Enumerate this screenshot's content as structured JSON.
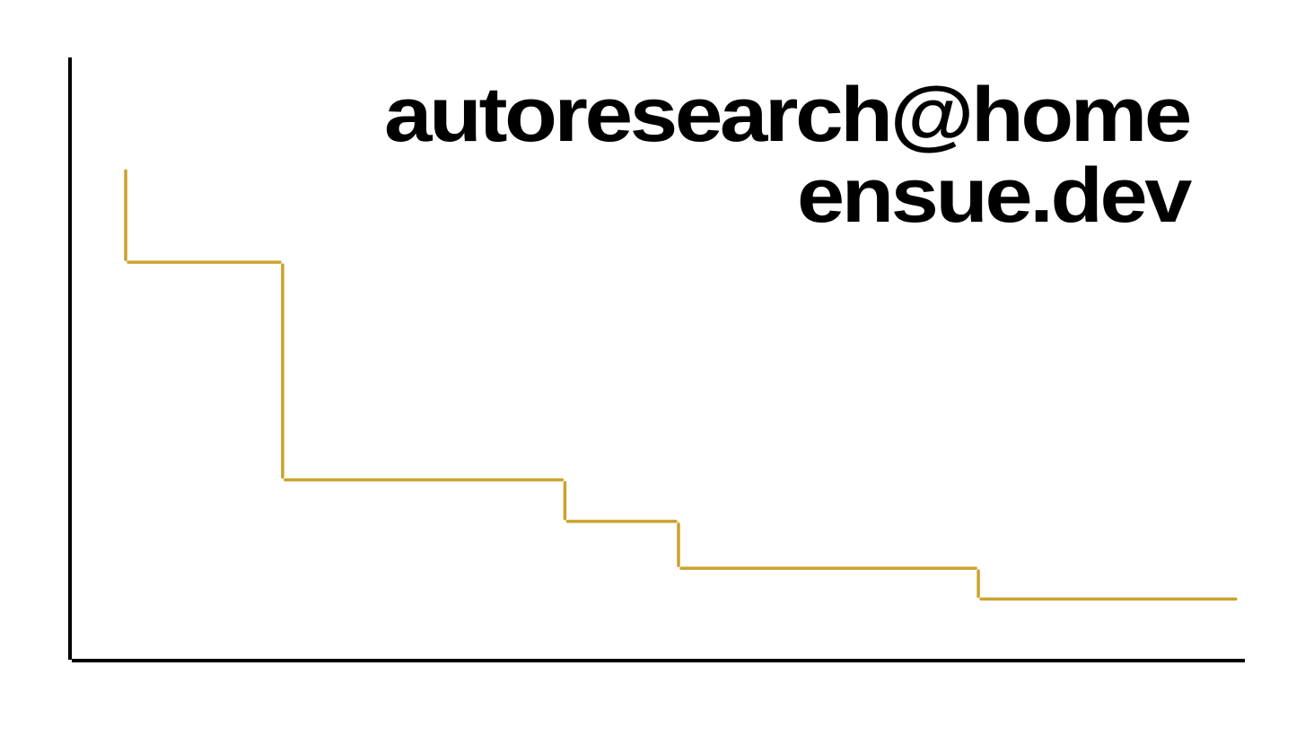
{
  "chart_data": {
    "type": "line",
    "subtype": "step",
    "title": "autoresearch@home",
    "subtitle": "ensue.dev",
    "xlabel": "",
    "ylabel": "",
    "grid": false,
    "legend": "none",
    "xlim": [
      0,
      100
    ],
    "ylim": [
      0,
      100
    ],
    "series": [
      {
        "color": "#CBA22C",
        "x": [
          4.6,
          18.0,
          42.1,
          51.8,
          77.4,
          99.6
        ],
        "y": [
          81.3,
          66.1,
          29.9,
          23.0,
          15.2,
          10.1
        ]
      }
    ],
    "axis_color": "#000000"
  }
}
